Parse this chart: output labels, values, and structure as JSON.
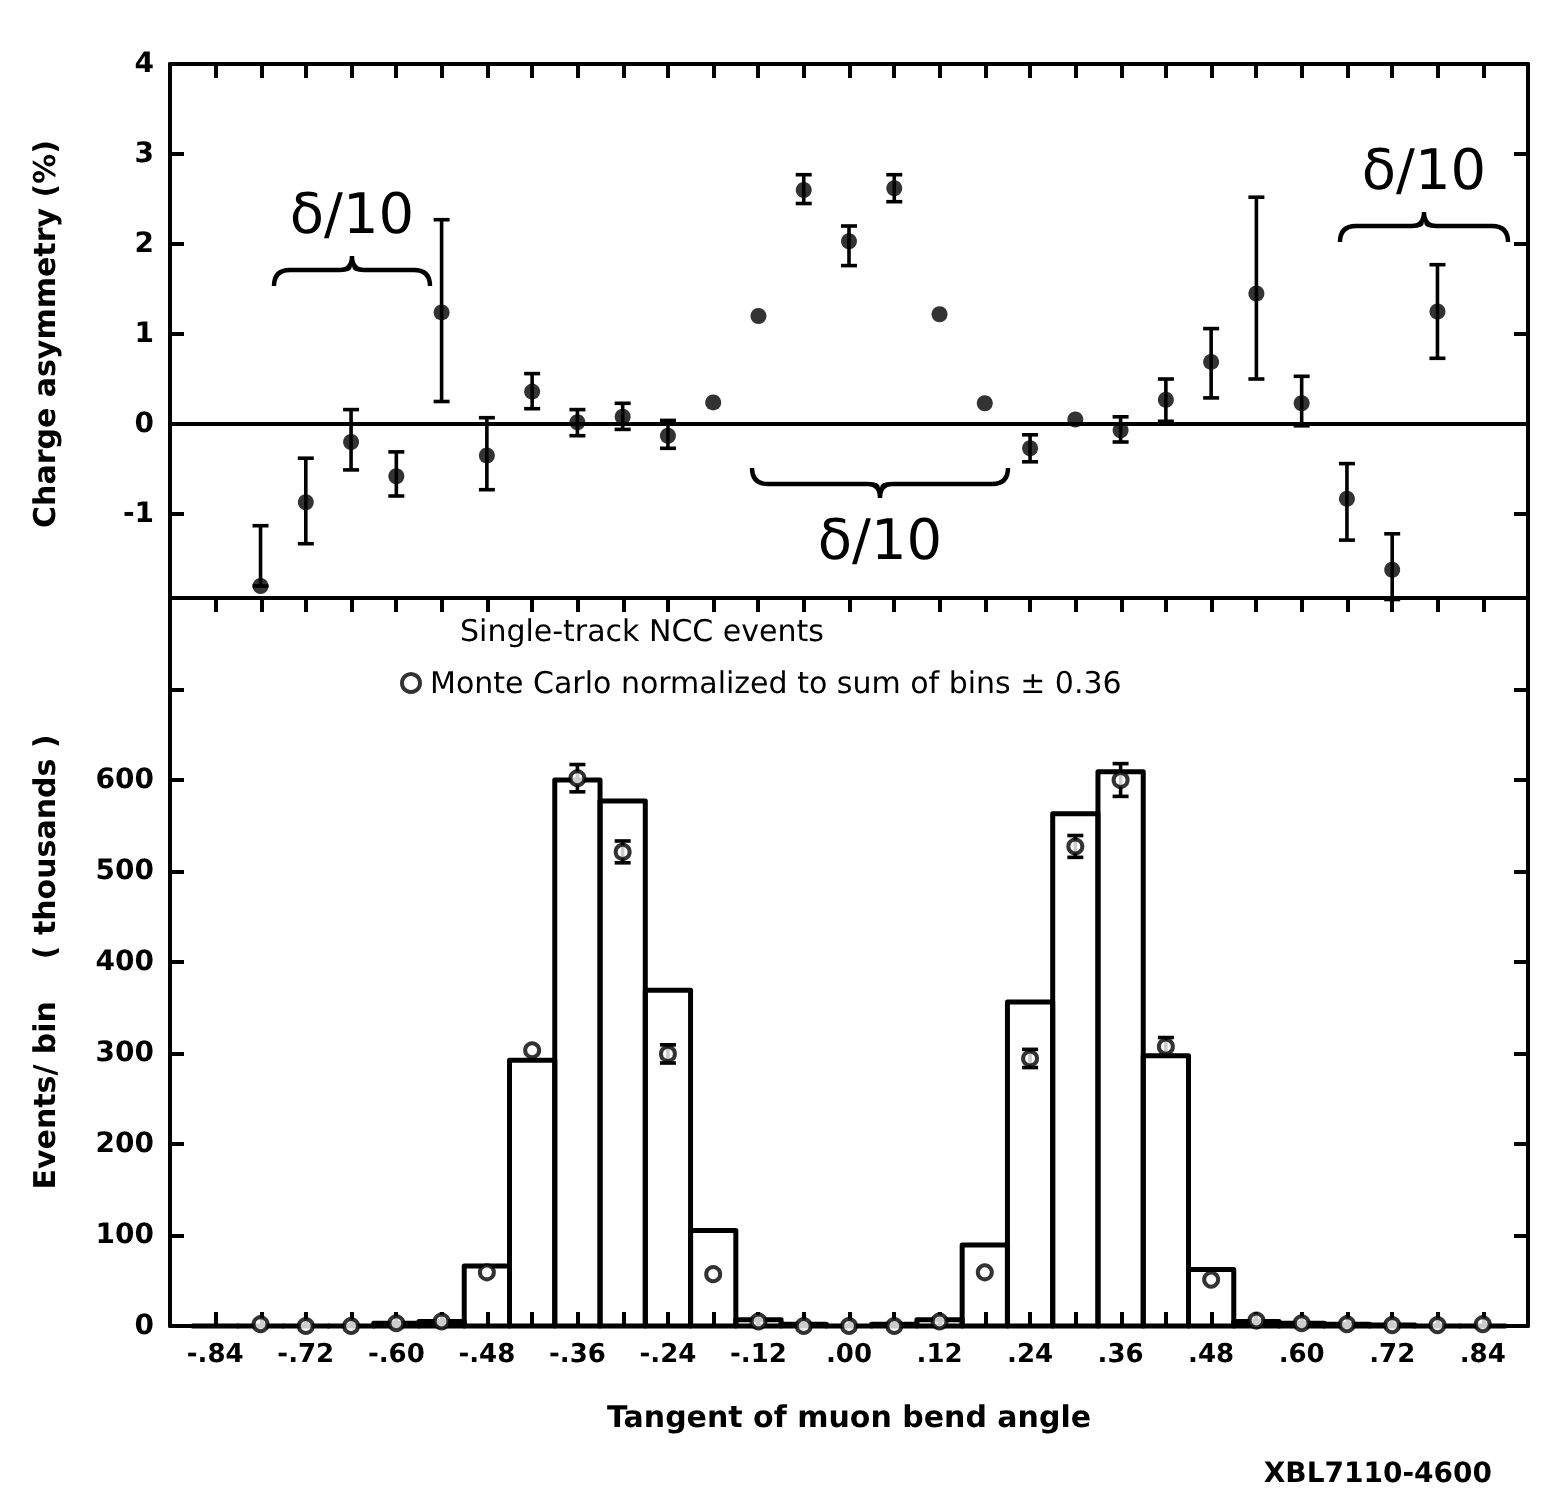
{
  "chart_data": [
    {
      "type": "scatter",
      "ylabel": "Charge asymmetry (%)",
      "marker": "circle",
      "tick_labels": "y",
      "xlim": [
        -0.9,
        0.9
      ],
      "xticks": [
        {
          "value": -0.84,
          "label": null
        },
        {
          "value": -0.78,
          "label": null
        },
        {
          "value": -0.72,
          "label": null
        },
        {
          "value": -0.66,
          "label": null
        },
        {
          "value": -0.6,
          "label": null
        },
        {
          "value": -0.54,
          "label": null
        },
        {
          "value": -0.48,
          "label": null
        },
        {
          "value": -0.42,
          "label": null
        },
        {
          "value": -0.36,
          "label": null
        },
        {
          "value": -0.3,
          "label": null
        },
        {
          "value": -0.24,
          "label": null
        },
        {
          "value": -0.18,
          "label": null
        },
        {
          "value": -0.12,
          "label": null
        },
        {
          "value": -0.06,
          "label": null
        },
        {
          "value": 0,
          "label": null
        },
        {
          "value": 0.06,
          "label": null
        },
        {
          "value": 0.12,
          "label": null
        },
        {
          "value": 0.18,
          "label": null
        },
        {
          "value": 0.24,
          "label": null
        },
        {
          "value": 0.3,
          "label": null
        },
        {
          "value": 0.36,
          "label": null
        },
        {
          "value": 0.42,
          "label": null
        },
        {
          "value": 0.48,
          "label": null
        },
        {
          "value": 0.54,
          "label": null
        },
        {
          "value": 0.6,
          "label": null
        },
        {
          "value": 0.66,
          "label": null
        },
        {
          "value": 0.72,
          "label": null
        },
        {
          "value": 0.78,
          "label": null
        },
        {
          "value": 0.84,
          "label": null
        }
      ],
      "ylim": [
        -2,
        4
      ],
      "yticks": [
        -1,
        0,
        1,
        2,
        3,
        4
      ],
      "ref_lines": [
        {
          "axis": "y",
          "value": 0,
          "color": "#000000"
        }
      ],
      "annotations": [
        "δ/10",
        "δ/10",
        "δ/10"
      ],
      "series": [
        {
          "color": "#000000",
          "x": [
            -0.78,
            -0.72,
            -0.66,
            -0.6,
            -0.54,
            -0.48,
            -0.42,
            -0.36,
            -0.3,
            -0.24,
            -0.18,
            -0.12,
            -0.06,
            0,
            0.06,
            0.12,
            0.18,
            0.24,
            0.3,
            0.36,
            0.42,
            0.48,
            0.54,
            0.6,
            0.66,
            0.72,
            0.78
          ],
          "values": [
            -1.8,
            -0.87,
            -0.2,
            -0.58,
            1.24,
            -0.35,
            0.36,
            0.02,
            0.08,
            -0.13,
            0.24,
            1.2,
            2.6,
            2.03,
            2.62,
            1.22,
            0.23,
            -0.27,
            0.05,
            -0.07,
            0.27,
            0.69,
            1.45,
            0.23,
            -0.83,
            -1.62,
            1.25
          ],
          "errors": [
            [
              -1.8,
              -1.13
            ],
            [
              -1.33,
              -0.38
            ],
            [
              -0.51,
              0.16
            ],
            [
              -0.8,
              -0.31
            ],
            [
              0.25,
              2.27
            ],
            [
              -0.73,
              0.07
            ],
            [
              0.17,
              0.56
            ],
            [
              -0.13,
              0.16
            ],
            [
              -0.06,
              0.23
            ],
            [
              -0.27,
              0.04
            ],
            null,
            null,
            [
              2.45,
              2.77
            ],
            [
              1.76,
              2.2
            ],
            [
              2.47,
              2.77
            ],
            null,
            null,
            [
              -0.42,
              -0.12
            ],
            null,
            [
              -0.2,
              0.08
            ],
            [
              0.03,
              0.5
            ],
            [
              0.29,
              1.06
            ],
            [
              0.5,
              2.52
            ],
            [
              -0.02,
              0.53
            ],
            [
              -1.29,
              -0.44
            ],
            [
              -1.95,
              -1.22
            ],
            [
              0.73,
              1.77
            ]
          ]
        }
      ]
    },
    {
      "type": "histogram",
      "title": "Single-track NCC events",
      "xlabel": "Tangent of muon bend angle",
      "ylabel": "Events/ bin    ( thousands )",
      "legend": "top",
      "annotations": [
        "XBL7110-4600"
      ],
      "xlim": [
        -0.9,
        0.9
      ],
      "xticks": [
        {
          "value": -0.84,
          "label": "-.84"
        },
        {
          "value": -0.78,
          "label": null
        },
        {
          "value": -0.72,
          "label": "-.72"
        },
        {
          "value": -0.66,
          "label": null
        },
        {
          "value": -0.6,
          "label": "-.60"
        },
        {
          "value": -0.54,
          "label": null
        },
        {
          "value": -0.48,
          "label": "-.48"
        },
        {
          "value": -0.42,
          "label": null
        },
        {
          "value": -0.36,
          "label": "-.36"
        },
        {
          "value": -0.3,
          "label": null
        },
        {
          "value": -0.24,
          "label": "-.24"
        },
        {
          "value": -0.18,
          "label": null
        },
        {
          "value": -0.12,
          "label": "-.12"
        },
        {
          "value": -0.06,
          "label": null
        },
        {
          "value": 0,
          "label": ".00"
        },
        {
          "value": 0.06,
          "label": null
        },
        {
          "value": 0.12,
          "label": ".12"
        },
        {
          "value": 0.18,
          "label": null
        },
        {
          "value": 0.24,
          "label": ".24"
        },
        {
          "value": 0.3,
          "label": null
        },
        {
          "value": 0.36,
          "label": ".36"
        },
        {
          "value": 0.42,
          "label": null
        },
        {
          "value": 0.48,
          "label": ".48"
        },
        {
          "value": 0.54,
          "label": null
        },
        {
          "value": 0.6,
          "label": ".60"
        },
        {
          "value": 0.66,
          "label": null
        },
        {
          "value": 0.72,
          "label": ".72"
        },
        {
          "value": 0.78,
          "label": null
        },
        {
          "value": 0.84,
          "label": ".84"
        }
      ],
      "ylim": [
        0,
        800
      ],
      "yticks": [
        0,
        100,
        200,
        300,
        400,
        500,
        600,
        {
          "value": 700,
          "label": null
        }
      ],
      "bins": [
        -0.87,
        -0.81,
        -0.75,
        -0.69,
        -0.63,
        -0.57,
        -0.51,
        -0.45,
        -0.39,
        -0.33,
        -0.27,
        -0.21,
        -0.15,
        -0.09,
        -0.03,
        0.03,
        0.09,
        0.15,
        0.21,
        0.27,
        0.33,
        0.39,
        0.45,
        0.51,
        0.57,
        0.63,
        0.69,
        0.75,
        0.81,
        0.87
      ],
      "series": [
        {
          "type": "histogram",
          "color": "#000000",
          "values": [
            0,
            0,
            0,
            0,
            3,
            5,
            66,
            292,
            600,
            577,
            369,
            105,
            7,
            2,
            0,
            2,
            7,
            89,
            356,
            563,
            609,
            297,
            62,
            5,
            3,
            2,
            1,
            0,
            0
          ]
        },
        {
          "type": "scatter",
          "name": "Monte Carlo normalized to sum of bins ± 0.36",
          "color": "#000000",
          "marker": "circle",
          "x": [
            -0.78,
            -0.72,
            -0.66,
            -0.6,
            -0.54,
            -0.48,
            -0.42,
            -0.36,
            -0.3,
            -0.24,
            -0.18,
            -0.12,
            -0.06,
            0,
            0.06,
            0.12,
            0.18,
            0.24,
            0.3,
            0.36,
            0.42,
            0.48,
            0.54,
            0.6,
            0.66,
            0.72,
            0.78,
            0.84
          ],
          "values": [
            2,
            0,
            0,
            3,
            5,
            59,
            303,
            602,
            521,
            299,
            57,
            5,
            0,
            0,
            0,
            5,
            59,
            294,
            527,
            600,
            307,
            51,
            6,
            3,
            2,
            1,
            1,
            2
          ],
          "errors": [
            null,
            null,
            null,
            null,
            null,
            null,
            null,
            15,
            12,
            10,
            null,
            null,
            null,
            null,
            null,
            null,
            null,
            10,
            12,
            18,
            10,
            null,
            null,
            null,
            null,
            null,
            null,
            null
          ]
        }
      ]
    }
  ]
}
